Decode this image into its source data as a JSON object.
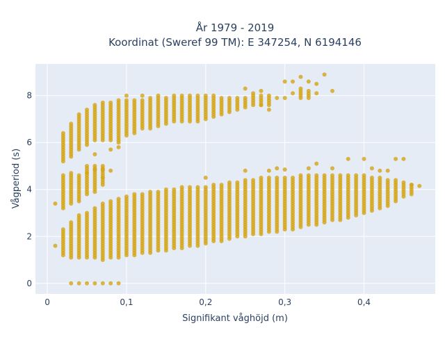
{
  "chart_data": {
    "type": "scatter",
    "title_line1": "År 1979 - 2019",
    "title_line2": "Koordinat (Sweref 99 TM): E 347254, N 6194146",
    "xlabel": "Signifikant våghöjd (m)",
    "ylabel": "Vågperiod (s)",
    "xlim": [
      -0.015,
      0.49
    ],
    "ylim": [
      -0.45,
      9.35
    ],
    "x_ticks": [
      0,
      0.1,
      0.2,
      0.3,
      0.4
    ],
    "x_tick_labels": [
      "0",
      "0,1",
      "0,2",
      "0,3",
      "0,4"
    ],
    "y_ticks": [
      0,
      2,
      4,
      6,
      8
    ],
    "y_tick_labels": [
      "0",
      "2",
      "4",
      "6",
      "8"
    ],
    "grid": true,
    "colors": {
      "plot_bg": "#e5ecf6",
      "grid": "#ffffff",
      "marker": "#d4a517",
      "text": "#2a3f5f"
    },
    "series": [
      {
        "x_step": 0.01,
        "y_step": 0.1,
        "columns": [
          {
            "x": 0.01,
            "ranges": [
              [
                1.6,
                1.6
              ],
              [
                3.4,
                3.4
              ]
            ]
          },
          {
            "x": 0.02,
            "ranges": [
              [
                1.2,
                2.3
              ],
              [
                3.2,
                4.6
              ],
              [
                5.2,
                6.4
              ]
            ]
          },
          {
            "x": 0.03,
            "ranges": [
              [
                1.1,
                2.6
              ],
              [
                3.4,
                4.7
              ],
              [
                5.4,
                6.8
              ]
            ]
          },
          {
            "x": 0.04,
            "ranges": [
              [
                1.1,
                2.9
              ],
              [
                3.5,
                4.6
              ],
              [
                5.7,
                7.2
              ]
            ]
          },
          {
            "x": 0.05,
            "ranges": [
              [
                1.1,
                3.0
              ],
              [
                3.8,
                4.9
              ],
              [
                5.9,
                7.4
              ]
            ]
          },
          {
            "x": 0.06,
            "ranges": [
              [
                1.1,
                3.2
              ],
              [
                3.9,
                5.0
              ],
              [
                6.1,
                7.6
              ]
            ]
          },
          {
            "x": 0.07,
            "ranges": [
              [
                1.0,
                3.4
              ],
              [
                4.2,
                5.0
              ],
              [
                6.1,
                7.7
              ]
            ]
          },
          {
            "x": 0.08,
            "ranges": [
              [
                1.1,
                3.5
              ],
              [
                6.1,
                7.7
              ]
            ]
          },
          {
            "x": 0.09,
            "ranges": [
              [
                1.1,
                3.6
              ],
              [
                6.0,
                7.8
              ]
            ]
          },
          {
            "x": 0.1,
            "ranges": [
              [
                1.2,
                3.7
              ],
              [
                6.3,
                7.8
              ]
            ]
          },
          {
            "x": 0.11,
            "ranges": [
              [
                1.2,
                3.8
              ],
              [
                6.4,
                7.8
              ]
            ]
          },
          {
            "x": 0.12,
            "ranges": [
              [
                1.3,
                3.8
              ],
              [
                6.6,
                7.8
              ]
            ]
          },
          {
            "x": 0.13,
            "ranges": [
              [
                1.3,
                3.9
              ],
              [
                6.6,
                7.9
              ]
            ]
          },
          {
            "x": 0.14,
            "ranges": [
              [
                1.4,
                3.9
              ],
              [
                6.7,
                8.0
              ]
            ]
          },
          {
            "x": 0.15,
            "ranges": [
              [
                1.4,
                4.0
              ],
              [
                6.8,
                7.9
              ]
            ]
          },
          {
            "x": 0.16,
            "ranges": [
              [
                1.5,
                4.0
              ],
              [
                6.9,
                8.0
              ]
            ]
          },
          {
            "x": 0.17,
            "ranges": [
              [
                1.5,
                4.1
              ],
              [
                6.9,
                8.0
              ]
            ]
          },
          {
            "x": 0.18,
            "ranges": [
              [
                1.6,
                4.1
              ],
              [
                6.9,
                8.0
              ]
            ]
          },
          {
            "x": 0.19,
            "ranges": [
              [
                1.6,
                4.1
              ],
              [
                6.9,
                8.0
              ]
            ]
          },
          {
            "x": 0.2,
            "ranges": [
              [
                1.7,
                4.1
              ],
              [
                7.0,
                8.0
              ]
            ]
          },
          {
            "x": 0.21,
            "ranges": [
              [
                1.8,
                4.2
              ],
              [
                7.1,
                8.0
              ]
            ]
          },
          {
            "x": 0.22,
            "ranges": [
              [
                1.8,
                4.2
              ],
              [
                7.2,
                7.9
              ]
            ]
          },
          {
            "x": 0.23,
            "ranges": [
              [
                1.9,
                4.3
              ],
              [
                7.3,
                7.9
              ]
            ]
          },
          {
            "x": 0.24,
            "ranges": [
              [
                2.0,
                4.3
              ],
              [
                7.4,
                7.9
              ]
            ]
          },
          {
            "x": 0.25,
            "ranges": [
              [
                2.0,
                4.4
              ],
              [
                7.5,
                7.9
              ]
            ]
          },
          {
            "x": 0.26,
            "ranges": [
              [
                2.1,
                4.4
              ],
              [
                7.6,
                8.1
              ]
            ]
          },
          {
            "x": 0.27,
            "ranges": [
              [
                2.1,
                4.5
              ],
              [
                7.6,
                8.0
              ]
            ]
          },
          {
            "x": 0.28,
            "ranges": [
              [
                2.2,
                4.5
              ],
              [
                7.6,
                8.0
              ]
            ]
          },
          {
            "x": 0.29,
            "ranges": [
              [
                2.2,
                4.5
              ]
            ]
          },
          {
            "x": 0.3,
            "ranges": [
              [
                2.3,
                4.5
              ]
            ]
          },
          {
            "x": 0.31,
            "ranges": [
              [
                2.3,
                4.5
              ]
            ]
          },
          {
            "x": 0.32,
            "ranges": [
              [
                2.4,
                4.6
              ],
              [
                7.9,
                8.3
              ]
            ]
          },
          {
            "x": 0.33,
            "ranges": [
              [
                2.5,
                4.6
              ],
              [
                7.9,
                8.2
              ]
            ]
          },
          {
            "x": 0.34,
            "ranges": [
              [
                2.5,
                4.6
              ]
            ]
          },
          {
            "x": 0.35,
            "ranges": [
              [
                2.6,
                4.6
              ]
            ]
          },
          {
            "x": 0.36,
            "ranges": [
              [
                2.7,
                4.6
              ]
            ]
          },
          {
            "x": 0.37,
            "ranges": [
              [
                2.7,
                4.6
              ]
            ]
          },
          {
            "x": 0.38,
            "ranges": [
              [
                2.8,
                4.6
              ]
            ]
          },
          {
            "x": 0.39,
            "ranges": [
              [
                2.9,
                4.6
              ]
            ]
          },
          {
            "x": 0.4,
            "ranges": [
              [
                3.0,
                4.6
              ]
            ]
          },
          {
            "x": 0.41,
            "ranges": [
              [
                3.1,
                4.5
              ]
            ]
          },
          {
            "x": 0.42,
            "ranges": [
              [
                3.2,
                4.5
              ]
            ]
          },
          {
            "x": 0.43,
            "ranges": [
              [
                3.3,
                4.4
              ]
            ]
          },
          {
            "x": 0.44,
            "ranges": [
              [
                3.5,
                4.4
              ]
            ]
          },
          {
            "x": 0.45,
            "ranges": [
              [
                3.7,
                4.3
              ]
            ]
          },
          {
            "x": 0.46,
            "ranges": [
              [
                3.8,
                4.2
              ]
            ]
          }
        ],
        "points": [
          [
            0.03,
            0
          ],
          [
            0.04,
            0
          ],
          [
            0.05,
            0
          ],
          [
            0.06,
            0
          ],
          [
            0.07,
            0
          ],
          [
            0.08,
            0
          ],
          [
            0.09,
            0
          ],
          [
            0.47,
            4.15
          ],
          [
            0.46,
            4.2
          ],
          [
            0.05,
            5.0
          ],
          [
            0.06,
            4.85
          ],
          [
            0.07,
            4.85
          ],
          [
            0.08,
            4.8
          ],
          [
            0.07,
            4.5
          ],
          [
            0.06,
            5.5
          ],
          [
            0.05,
            4.7
          ],
          [
            0.08,
            5.7
          ],
          [
            0.09,
            5.8
          ],
          [
            0.1,
            8.0
          ],
          [
            0.12,
            8.0
          ],
          [
            0.2,
            4.5
          ],
          [
            0.25,
            4.8
          ],
          [
            0.28,
            4.8
          ],
          [
            0.29,
            4.9
          ],
          [
            0.3,
            4.85
          ],
          [
            0.33,
            4.9
          ],
          [
            0.34,
            5.1
          ],
          [
            0.36,
            4.9
          ],
          [
            0.38,
            5.3
          ],
          [
            0.4,
            5.3
          ],
          [
            0.41,
            4.9
          ],
          [
            0.42,
            4.8
          ],
          [
            0.43,
            4.8
          ],
          [
            0.44,
            5.3
          ],
          [
            0.45,
            5.3
          ],
          [
            0.25,
            8.3
          ],
          [
            0.27,
            8.2
          ],
          [
            0.27,
            7.6
          ],
          [
            0.28,
            7.4
          ],
          [
            0.29,
            7.9
          ],
          [
            0.3,
            7.9
          ],
          [
            0.3,
            8.6
          ],
          [
            0.31,
            8.6
          ],
          [
            0.32,
            8.8
          ],
          [
            0.33,
            8.6
          ],
          [
            0.34,
            8.5
          ],
          [
            0.35,
            8.9
          ],
          [
            0.36,
            8.2
          ],
          [
            0.34,
            8.1
          ],
          [
            0.31,
            8.1
          ]
        ]
      }
    ]
  }
}
